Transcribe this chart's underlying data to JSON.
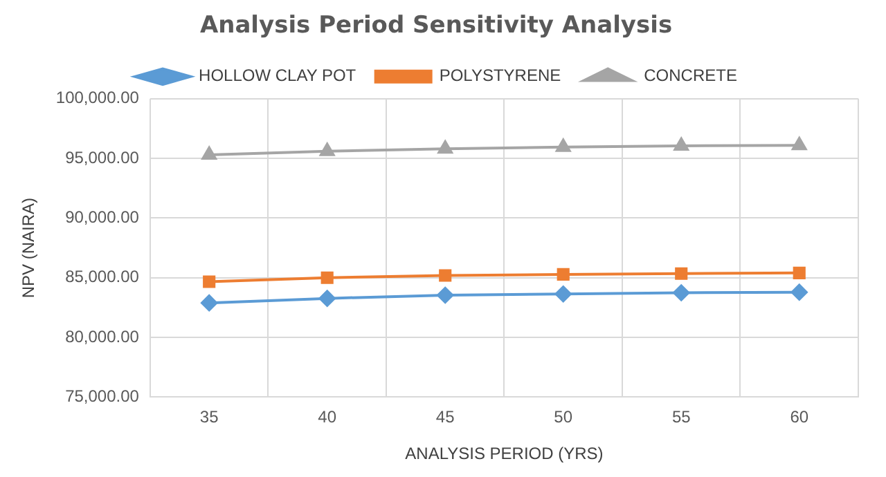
{
  "chart_data": {
    "type": "line",
    "title": "Analysis Period Sensitivity Analysis",
    "xlabel": "ANALYSIS PERIOD (YRS)",
    "ylabel": "NPV (NAIRA)",
    "categories": [
      "35",
      "40",
      "45",
      "50",
      "55",
      "60"
    ],
    "series": [
      {
        "name": "HOLLOW CLAY POT",
        "color": "#5b9bd5",
        "marker": "diamond",
        "values": [
          82890,
          83270,
          83540,
          83640,
          83740,
          83790
        ]
      },
      {
        "name": "POLYSTYRENE",
        "color": "#ed7d31",
        "marker": "square",
        "values": [
          84670,
          85000,
          85190,
          85280,
          85350,
          85400
        ]
      },
      {
        "name": "CONCRETE",
        "color": "#a5a5a5",
        "marker": "triangle",
        "values": [
          95300,
          95600,
          95800,
          95950,
          96050,
          96100
        ]
      }
    ],
    "ylim": [
      75000,
      100000
    ],
    "yticks": [
      {
        "value": 75000,
        "label": "75,000.00"
      },
      {
        "value": 80000,
        "label": "80,000.00"
      },
      {
        "value": 85000,
        "label": "85,000.00"
      },
      {
        "value": 90000,
        "label": "90,000.00"
      },
      {
        "value": 95000,
        "label": "95,000.00"
      },
      {
        "value": 100000,
        "label": "100,000.00"
      }
    ],
    "grid": true,
    "legend": "top",
    "line_style": "solid"
  }
}
